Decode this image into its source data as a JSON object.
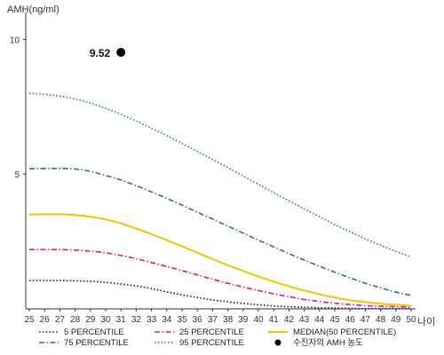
{
  "chart_data": {
    "type": "line",
    "ylabel": "AMH(ng/ml)",
    "xlabel": "나이",
    "xlim": [
      25,
      50
    ],
    "ylim": [
      0,
      11
    ],
    "y_ticks": [
      5,
      10
    ],
    "x": [
      25,
      26,
      27,
      28,
      29,
      30,
      31,
      32,
      33,
      34,
      35,
      36,
      37,
      38,
      39,
      40,
      41,
      42,
      43,
      44,
      45,
      46,
      47,
      48,
      49,
      50
    ],
    "x_tick_labels": [
      "25",
      "26",
      "27",
      "28",
      "29",
      "30",
      "31",
      "32",
      "33",
      "34",
      "35",
      "36",
      "37",
      "38",
      "39",
      "40",
      "41",
      "42",
      "43",
      "44",
      "45",
      "46",
      "47",
      "48",
      "49",
      "50"
    ],
    "grid": false,
    "legend_position": "bottom",
    "series": [
      {
        "name": "5 PERCENTILE",
        "color": "#1a1a6e",
        "dash": "dot",
        "values": [
          1.05,
          1.05,
          1.05,
          1.04,
          1.02,
          0.98,
          0.92,
          0.85,
          0.75,
          0.63,
          0.52,
          0.42,
          0.33,
          0.26,
          0.2,
          0.15,
          0.11,
          0.08,
          0.06,
          0.04,
          0.03,
          0.02,
          0.01,
          0.01,
          0.01,
          0.01
        ]
      },
      {
        "name": "25 PERCENTILE",
        "color": "#e0197d",
        "dash": "dashdot",
        "values": [
          2.2,
          2.2,
          2.2,
          2.18,
          2.14,
          2.08,
          1.98,
          1.86,
          1.72,
          1.57,
          1.42,
          1.26,
          1.1,
          0.95,
          0.81,
          0.68,
          0.56,
          0.45,
          0.35,
          0.27,
          0.21,
          0.16,
          0.12,
          0.1,
          0.08,
          0.07
        ]
      },
      {
        "name": "MEDIAN(50 PERCENTILE)",
        "color": "#f5c400",
        "dash": "solid",
        "values": [
          3.5,
          3.51,
          3.51,
          3.48,
          3.42,
          3.32,
          3.17,
          2.98,
          2.77,
          2.55,
          2.32,
          2.08,
          1.85,
          1.62,
          1.41,
          1.2,
          1.01,
          0.84,
          0.68,
          0.54,
          0.42,
          0.32,
          0.25,
          0.19,
          0.15,
          0.12
        ]
      },
      {
        "name": "75 PERCENTILE",
        "color": "#3b5fc0",
        "dash": "dashdot",
        "values": [
          5.2,
          5.21,
          5.21,
          5.19,
          5.1,
          4.95,
          4.78,
          4.57,
          4.34,
          4.1,
          3.85,
          3.59,
          3.33,
          3.07,
          2.81,
          2.55,
          2.3,
          2.05,
          1.81,
          1.58,
          1.36,
          1.15,
          0.95,
          0.78,
          0.62,
          0.5
        ]
      },
      {
        "name": "95 PERCENTILE",
        "color": "#2e8b57",
        "dash": "dot",
        "values": [
          8.0,
          7.96,
          7.89,
          7.79,
          7.64,
          7.44,
          7.22,
          6.97,
          6.7,
          6.43,
          6.14,
          5.84,
          5.54,
          5.24,
          4.93,
          4.62,
          4.31,
          4.01,
          3.71,
          3.42,
          3.13,
          2.86,
          2.6,
          2.36,
          2.13,
          1.93
        ]
      }
    ],
    "marker": {
      "name": "수진자의 AMH 농도",
      "x": 31,
      "y": 9.52,
      "label": "9.52",
      "color": "#000000"
    }
  }
}
